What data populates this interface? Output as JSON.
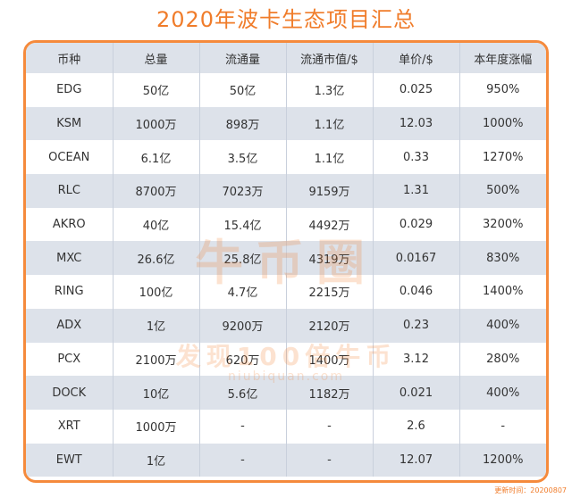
{
  "title": "2020年波卡生态项目汇总",
  "table": {
    "headers": [
      "币种",
      "总量",
      "流通量",
      "流通市值/$",
      "单价/$",
      "本年度涨幅"
    ],
    "rows": [
      [
        "EDG",
        "50亿",
        "50亿",
        "1.3亿",
        "0.025",
        "950%"
      ],
      [
        "KSM",
        "1000万",
        "898万",
        "1.1亿",
        "12.03",
        "1000%"
      ],
      [
        "OCEAN",
        "6.1亿",
        "3.5亿",
        "1.1亿",
        "0.33",
        "1270%"
      ],
      [
        "RLC",
        "8700万",
        "7023万",
        "9159万",
        "1.31",
        "500%"
      ],
      [
        "AKRO",
        "40亿",
        "15.4亿",
        "4492万",
        "0.029",
        "3200%"
      ],
      [
        "MXC",
        "26.6亿",
        "25.8亿",
        "4319万",
        "0.0167",
        "830%"
      ],
      [
        "RING",
        "100亿",
        "4.7亿",
        "2215万",
        "0.046",
        "1400%"
      ],
      [
        "ADX",
        "1亿",
        "9200万",
        "2120万",
        "0.23",
        "400%"
      ],
      [
        "PCX",
        "2100万",
        "620万",
        "1400万",
        "3.12",
        "280%"
      ],
      [
        "DOCK",
        "10亿",
        "5.6亿",
        "1182万",
        "0.021",
        "400%"
      ],
      [
        "XRT",
        "1000万",
        "-",
        "-",
        "2.6",
        "-"
      ],
      [
        "EWT",
        "1亿",
        "-",
        "-",
        "12.07",
        "1200%"
      ]
    ]
  },
  "watermark": {
    "logo": "牛币圈",
    "slogan": "发现100倍牛币",
    "url": "niubiquan.com"
  },
  "update_time": "更新时间：20200807"
}
